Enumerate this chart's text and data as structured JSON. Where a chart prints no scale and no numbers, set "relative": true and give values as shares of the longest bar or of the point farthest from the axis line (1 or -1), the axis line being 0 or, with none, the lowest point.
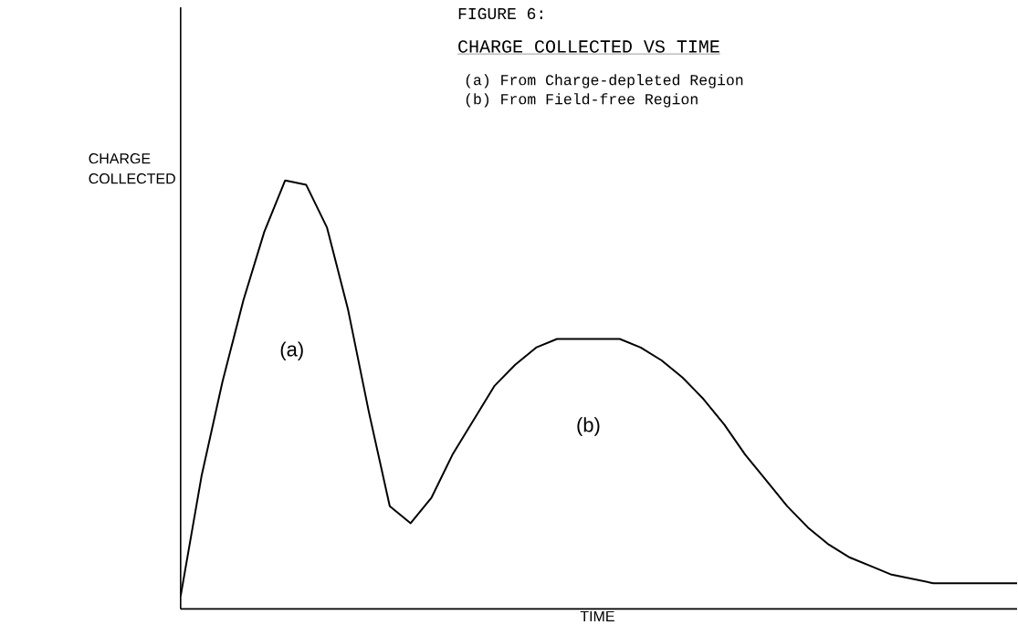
{
  "chart_data": {
    "type": "line",
    "relative": true,
    "title": "FIGURE 6:",
    "subtitle": "CHARGE COLLECTED VS TIME",
    "xlabel": "TIME",
    "ylabel": "CHARGE COLLECTED",
    "annotations": [
      "(a)",
      "(b)",
      "(a) From Charge-depleted Region",
      "(b) From Field-free Region"
    ],
    "categories": [
      null,
      null,
      null,
      null,
      null,
      null,
      null,
      null,
      null,
      null,
      null,
      null,
      null,
      null,
      null,
      null,
      null,
      null,
      null,
      null,
      null,
      null,
      null,
      null,
      null,
      null,
      null,
      null,
      null,
      null,
      null,
      null,
      null,
      null,
      null,
      null,
      null,
      null,
      null,
      null,
      null
    ],
    "series": [
      {
        "color": "#000000",
        "values": [
          0.03,
          0.31,
          0.53,
          0.72,
          0.88,
          1.0,
          0.99,
          0.89,
          0.7,
          0.46,
          0.24,
          0.2,
          0.26,
          0.36,
          0.44,
          0.52,
          0.57,
          0.61,
          0.63,
          0.63,
          0.63,
          0.63,
          0.61,
          0.58,
          0.54,
          0.49,
          0.43,
          0.36,
          0.3,
          0.24,
          0.19,
          0.15,
          0.12,
          0.1,
          0.08,
          0.07,
          0.06,
          0.06,
          0.06,
          0.06,
          0.06
        ]
      }
    ],
    "marker": "none",
    "line_style": "solid"
  }
}
